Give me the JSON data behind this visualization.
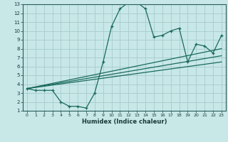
{
  "xlabel": "Humidex (Indice chaleur)",
  "bg_color": "#c8e8e8",
  "grid_color": "#aacece",
  "line_color": "#1a6a5a",
  "xlim": [
    -0.5,
    23.5
  ],
  "ylim": [
    1,
    13
  ],
  "xticks": [
    0,
    1,
    2,
    3,
    4,
    5,
    6,
    7,
    8,
    9,
    10,
    11,
    12,
    13,
    14,
    15,
    16,
    17,
    18,
    19,
    20,
    21,
    22,
    23
  ],
  "yticks": [
    1,
    2,
    3,
    4,
    5,
    6,
    7,
    8,
    9,
    10,
    11,
    12,
    13
  ],
  "series1_x": [
    0,
    1,
    2,
    3,
    4,
    5,
    6,
    7,
    8,
    9,
    10,
    11,
    12,
    13,
    14,
    15,
    16,
    17,
    18,
    19,
    20,
    21,
    22,
    23
  ],
  "series1_y": [
    3.5,
    3.3,
    3.3,
    3.3,
    2.0,
    1.5,
    1.5,
    1.3,
    3.0,
    6.5,
    10.5,
    12.5,
    13.2,
    13.2,
    12.5,
    9.3,
    9.5,
    10.0,
    10.3,
    6.5,
    8.5,
    8.3,
    7.5,
    9.5
  ],
  "series2_x": [
    0,
    23
  ],
  "series2_y": [
    3.5,
    8.0
  ],
  "series3_x": [
    0,
    23
  ],
  "series3_y": [
    3.5,
    6.5
  ],
  "series4_x": [
    0,
    23
  ],
  "series4_y": [
    3.5,
    7.2
  ]
}
